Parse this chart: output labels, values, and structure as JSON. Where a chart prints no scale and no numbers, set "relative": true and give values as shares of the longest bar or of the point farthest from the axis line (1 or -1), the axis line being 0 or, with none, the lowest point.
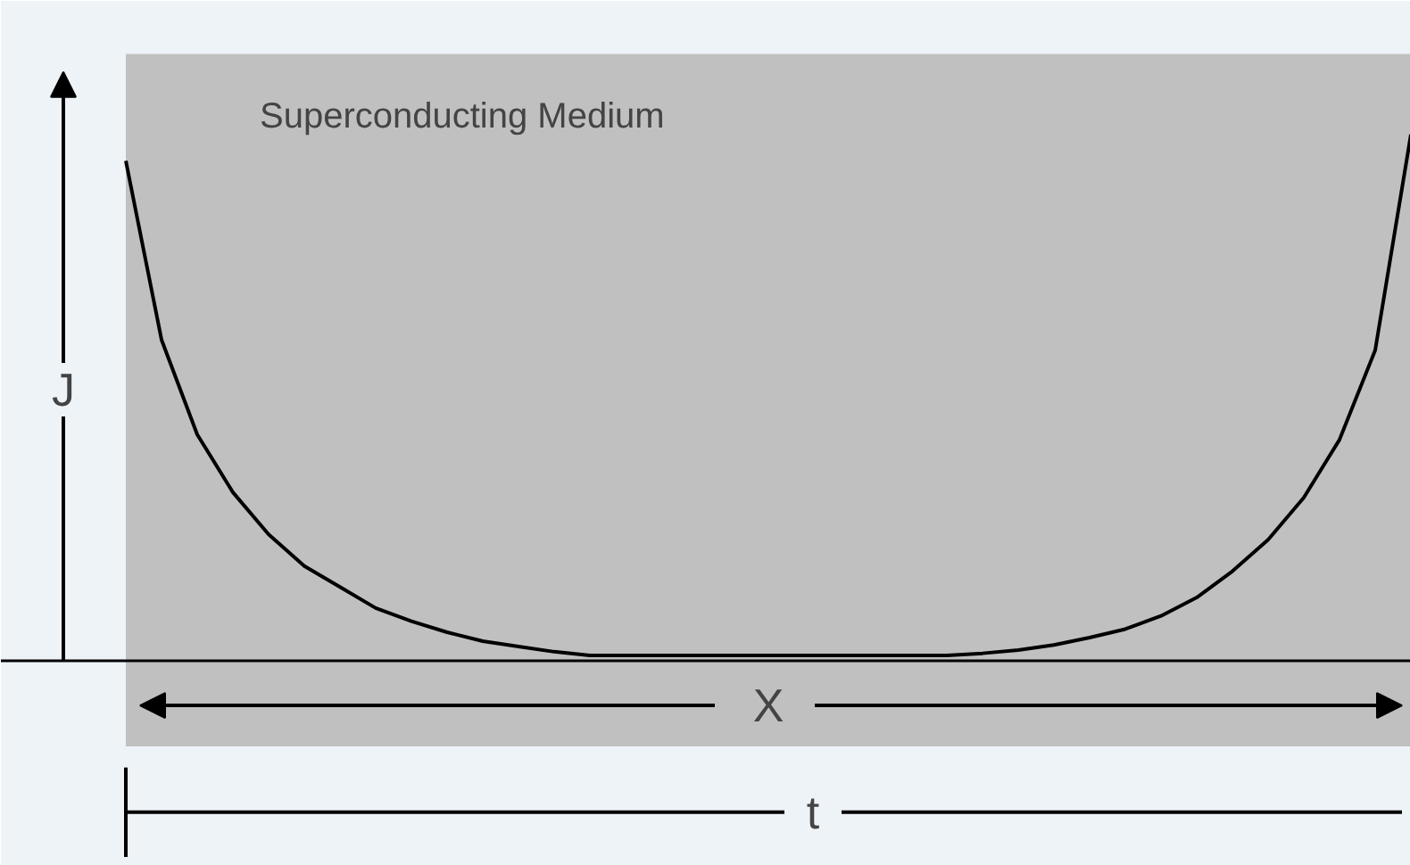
{
  "chart_data": {
    "type": "line",
    "relative": true,
    "xlabel": "X",
    "ylabel": "J",
    "annotations": [
      "Superconducting Medium",
      "t"
    ],
    "categories": [
      null,
      null,
      null,
      null,
      null,
      null,
      null,
      null,
      null,
      null,
      null,
      null,
      null,
      null,
      null,
      null,
      null,
      null,
      null,
      null,
      null,
      null,
      null,
      null,
      null,
      null,
      null,
      null,
      null,
      null,
      null,
      null,
      null,
      null,
      null,
      null,
      null
    ],
    "series": [
      {
        "color": "#000000",
        "values": [
          0.95,
          0.61,
          0.43,
          0.32,
          0.24,
          0.18,
          0.14,
          0.1,
          0.075,
          0.054,
          0.037,
          0.027,
          0.017,
          0.01,
          0.01,
          0.01,
          0.01,
          0.01,
          0.01,
          0.01,
          0.01,
          0.01,
          0.01,
          0.01,
          0.014,
          0.02,
          0.03,
          0.044,
          0.06,
          0.085,
          0.12,
          0.17,
          0.23,
          0.31,
          0.42,
          0.59,
          1.0
        ]
      }
    ]
  }
}
